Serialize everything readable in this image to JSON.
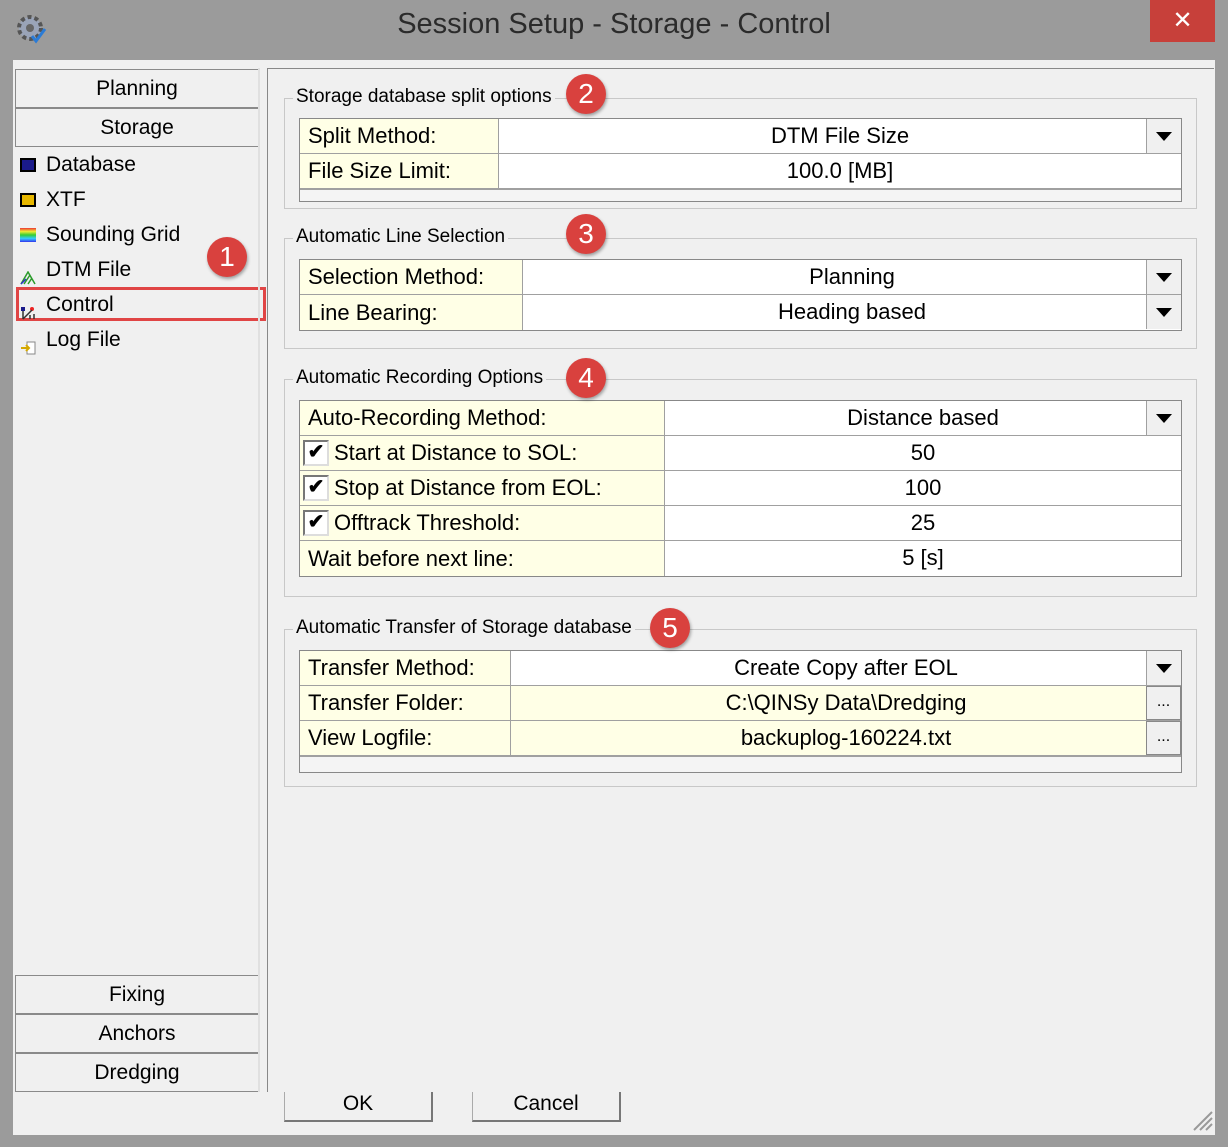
{
  "window": {
    "title": "Session Setup - Storage -  Control",
    "close": "✕"
  },
  "sidebar": {
    "top_buttons": [
      "Planning",
      "Storage"
    ],
    "items": [
      {
        "label": "Database",
        "icon": "floppy-disk-blue-icon"
      },
      {
        "label": "XTF",
        "icon": "floppy-disk-yellow-icon"
      },
      {
        "label": "Sounding Grid",
        "icon": "color-grid-icon"
      },
      {
        "label": "DTM File",
        "icon": "dtm-mesh-icon"
      },
      {
        "label": "Control",
        "icon": "control-icon",
        "selected": true
      },
      {
        "label": "Log File",
        "icon": "log-file-icon"
      }
    ],
    "bottom_buttons": [
      "Fixing",
      "Anchors",
      "Dredging"
    ]
  },
  "annotations": [
    "1",
    "2",
    "3",
    "4",
    "5"
  ],
  "annotation_color": "#d9413e",
  "groups": {
    "split": {
      "title": "Storage database split options",
      "rows": [
        {
          "label": "Split Method:",
          "value": "DTM File Size",
          "dropdown": true
        },
        {
          "label": "File Size Limit:",
          "value": "100.0 [MB]"
        }
      ]
    },
    "line": {
      "title": "Automatic Line Selection",
      "rows": [
        {
          "label": "Selection Method:",
          "value": "Planning",
          "dropdown": true
        },
        {
          "label": "Line Bearing:",
          "value": "Heading based",
          "dropdown": true
        }
      ]
    },
    "rec": {
      "title": "Automatic Recording Options",
      "rows": [
        {
          "label": "Auto-Recording Method:",
          "value": "Distance based",
          "dropdown": true
        },
        {
          "label": "Start at Distance to SOL:",
          "value": "50",
          "checked": true
        },
        {
          "label": "Stop at Distance from EOL:",
          "value": "100",
          "checked": true
        },
        {
          "label": "Offtrack Threshold:",
          "value": "25",
          "checked": true
        },
        {
          "label": "Wait before next line:",
          "value": "5 [s]"
        }
      ]
    },
    "transfer": {
      "title": "Automatic Transfer of Storage database",
      "rows": [
        {
          "label": "Transfer Method:",
          "value": "Create Copy after EOL",
          "dropdown": true
        },
        {
          "label": "Transfer Folder:",
          "value": "C:\\QINSy Data\\Dredging",
          "browse": "..."
        },
        {
          "label": "View Logfile:",
          "value": "backuplog-160224.txt",
          "browse": "..."
        }
      ]
    }
  },
  "buttons": {
    "ok": "OK",
    "cancel": "Cancel"
  },
  "check_mark": "✔"
}
